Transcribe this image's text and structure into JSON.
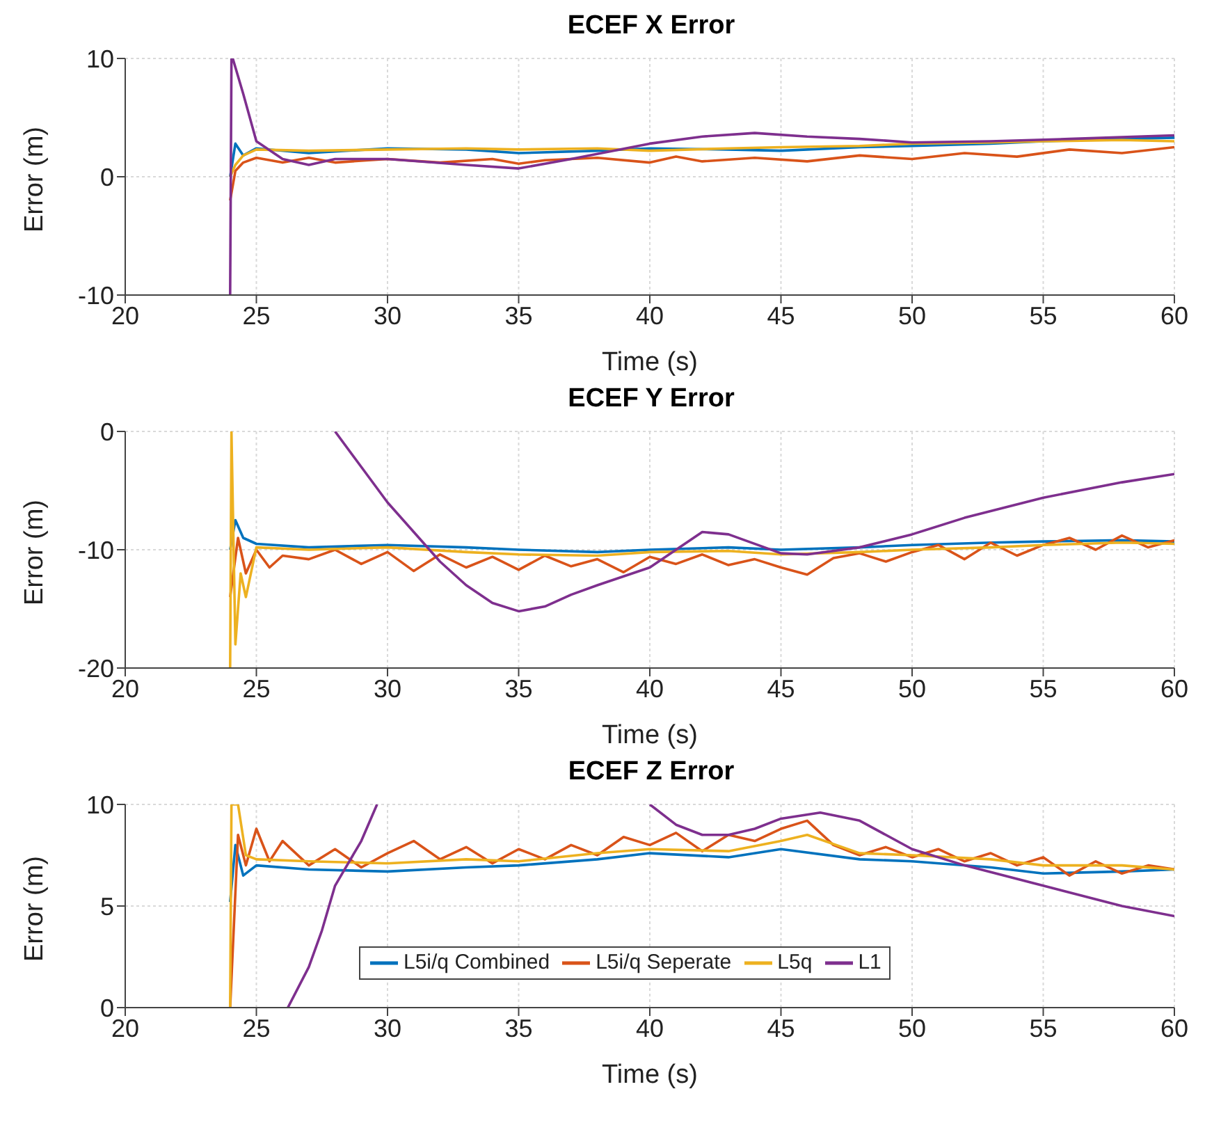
{
  "chart_data": [
    {
      "type": "line",
      "title": "ECEF X Error",
      "xlabel": "Time (s)",
      "ylabel": "Error (m)",
      "xlim": [
        20,
        60
      ],
      "xticks": [
        20,
        25,
        30,
        35,
        40,
        45,
        50,
        55,
        60
      ],
      "ylim": [
        -10,
        10
      ],
      "yticks": [
        -10,
        0,
        10
      ],
      "grid": true,
      "legend": false,
      "line_style": "solid",
      "marker": "none",
      "series": [
        {
          "color": "#0072bd",
          "x": [
            24,
            24.2,
            24.5,
            25,
            27,
            30,
            33,
            35,
            38,
            40,
            43,
            45,
            48,
            50,
            53,
            55,
            58,
            60
          ],
          "values": [
            0,
            2.8,
            1.8,
            2.4,
            2.0,
            2.4,
            2.3,
            2.0,
            2.2,
            2.4,
            2.3,
            2.2,
            2.5,
            2.6,
            2.8,
            3,
            3.2,
            3.3
          ]
        },
        {
          "color": "#d95319",
          "x": [
            24,
            24.2,
            24.5,
            25,
            26,
            27,
            28,
            30,
            32,
            34,
            35,
            36,
            38,
            40,
            41,
            42,
            44,
            46,
            48,
            50,
            52,
            54,
            56,
            58,
            60
          ],
          "values": [
            -2,
            0.5,
            1.2,
            1.6,
            1.2,
            1.6,
            1.2,
            1.5,
            1.2,
            1.5,
            1.1,
            1.4,
            1.6,
            1.2,
            1.7,
            1.3,
            1.6,
            1.3,
            1.8,
            1.5,
            2,
            1.7,
            2.3,
            2,
            2.5
          ]
        },
        {
          "color": "#edb120",
          "x": [
            24,
            24.2,
            24.5,
            25,
            27,
            30,
            33,
            35,
            38,
            40,
            43,
            45,
            48,
            50,
            53,
            55,
            58,
            60
          ],
          "values": [
            0,
            1,
            1.8,
            2.3,
            2.2,
            2.3,
            2.4,
            2.3,
            2.4,
            2.2,
            2.4,
            2.5,
            2.6,
            2.8,
            2.9,
            3,
            3.1,
            3
          ]
        },
        {
          "color": "#7e2f8e",
          "x": [
            24,
            24.05,
            24.1,
            24.5,
            25,
            26,
            27,
            28,
            30,
            33,
            35,
            37,
            40,
            42,
            44,
            46,
            48,
            50,
            53,
            56,
            60
          ],
          "values": [
            -10,
            10,
            10,
            7,
            3,
            1.5,
            1,
            1.5,
            1.5,
            1,
            0.7,
            1.5,
            2.8,
            3.4,
            3.7,
            3.4,
            3.2,
            2.9,
            3,
            3.2,
            3.5
          ]
        }
      ]
    },
    {
      "type": "line",
      "title": "ECEF Y Error",
      "xlabel": "Time (s)",
      "ylabel": "Error (m)",
      "xlim": [
        20,
        60
      ],
      "xticks": [
        20,
        25,
        30,
        35,
        40,
        45,
        50,
        55,
        60
      ],
      "ylim": [
        -20,
        0
      ],
      "yticks": [
        -20,
        -10,
        0
      ],
      "grid": true,
      "legend": false,
      "line_style": "solid",
      "marker": "none",
      "series": [
        {
          "color": "#0072bd",
          "x": [
            24,
            24.2,
            24.5,
            25,
            27,
            30,
            33,
            35,
            38,
            40,
            43,
            45,
            48,
            50,
            53,
            55,
            58,
            60
          ],
          "values": [
            -10,
            -7.5,
            -9,
            -9.5,
            -9.8,
            -9.6,
            -9.8,
            -10,
            -10.2,
            -10,
            -9.8,
            -10,
            -9.8,
            -9.6,
            -9.4,
            -9.3,
            -9.2,
            -9.3
          ]
        },
        {
          "color": "#d95319",
          "x": [
            24,
            24.3,
            24.6,
            25,
            25.5,
            26,
            27,
            28,
            29,
            30,
            31,
            32,
            33,
            34,
            35,
            36,
            37,
            38,
            39,
            40,
            41,
            42,
            43,
            44,
            45,
            46,
            47,
            48,
            49,
            50,
            51,
            52,
            53,
            54,
            55,
            56,
            57,
            58,
            59,
            60
          ],
          "values": [
            -14,
            -9,
            -12,
            -10,
            -11.5,
            -10.5,
            -10.8,
            -10,
            -11.2,
            -10.2,
            -11.8,
            -10.4,
            -11.5,
            -10.6,
            -11.7,
            -10.5,
            -11.4,
            -10.8,
            -11.9,
            -10.6,
            -11.2,
            -10.4,
            -11.3,
            -10.8,
            -11.5,
            -12.1,
            -10.7,
            -10.3,
            -11,
            -10.2,
            -9.6,
            -10.8,
            -9.4,
            -10.5,
            -9.6,
            -9,
            -10,
            -8.8,
            -9.8,
            -9.2
          ]
        },
        {
          "color": "#edb120",
          "x": [
            24,
            24.05,
            24.2,
            24.4,
            24.6,
            25,
            27,
            30,
            33,
            35,
            38,
            40,
            43,
            45,
            48,
            50,
            53,
            55,
            58,
            60
          ],
          "values": [
            -20,
            0,
            -18,
            -12,
            -14,
            -9.8,
            -10,
            -9.8,
            -10.2,
            -10.4,
            -10.5,
            -10.2,
            -10.1,
            -10.4,
            -10.2,
            -10,
            -9.8,
            -9.6,
            -9.4,
            -9.5
          ]
        },
        {
          "color": "#7e2f8e",
          "x": [
            28,
            29,
            30,
            31,
            32,
            33,
            34,
            35,
            36,
            37,
            38,
            40,
            42,
            43,
            45,
            46,
            48,
            50,
            52,
            55,
            58,
            60
          ],
          "values": [
            0,
            -3,
            -6,
            -8.5,
            -11,
            -13,
            -14.5,
            -15.2,
            -14.8,
            -13.8,
            -13,
            -11.5,
            -8.5,
            -8.7,
            -10.3,
            -10.4,
            -9.8,
            -8.7,
            -7.3,
            -5.6,
            -4.3,
            -3.6
          ]
        }
      ]
    },
    {
      "type": "line",
      "title": "ECEF Z Error",
      "xlabel": "Time (s)",
      "ylabel": "Error (m)",
      "xlim": [
        20,
        60
      ],
      "xticks": [
        20,
        25,
        30,
        35,
        40,
        45,
        50,
        55,
        60
      ],
      "ylim": [
        0,
        10
      ],
      "yticks": [
        0,
        5,
        10
      ],
      "grid": true,
      "legend": "bottom",
      "line_style": "solid",
      "marker": "none",
      "series": [
        {
          "name": "L5i/q Combined",
          "color": "#0072bd",
          "x": [
            24,
            24.2,
            24.5,
            25,
            27,
            30,
            33,
            35,
            38,
            40,
            43,
            45,
            48,
            50,
            53,
            55,
            58,
            60
          ],
          "values": [
            5.2,
            8,
            6.5,
            7,
            6.8,
            6.7,
            6.9,
            7,
            7.3,
            7.6,
            7.4,
            7.8,
            7.3,
            7.2,
            6.9,
            6.6,
            6.7,
            6.8
          ]
        },
        {
          "name": "L5i/q Seperate",
          "color": "#d95319",
          "x": [
            24,
            24.3,
            24.6,
            25,
            25.5,
            26,
            27,
            28,
            29,
            30,
            31,
            32,
            33,
            34,
            35,
            36,
            37,
            38,
            39,
            40,
            41,
            42,
            43,
            44,
            45,
            46,
            47,
            48,
            49,
            50,
            51,
            52,
            53,
            54,
            55,
            56,
            57,
            58,
            59,
            60
          ],
          "values": [
            0,
            8.5,
            7,
            8.8,
            7.2,
            8.2,
            7,
            7.8,
            6.9,
            7.6,
            8.2,
            7.3,
            7.9,
            7.1,
            7.8,
            7.3,
            8,
            7.5,
            8.4,
            8,
            8.6,
            7.7,
            8.5,
            8.2,
            8.8,
            9.2,
            8,
            7.5,
            7.9,
            7.4,
            7.8,
            7.2,
            7.6,
            7,
            7.4,
            6.5,
            7.2,
            6.6,
            7,
            6.8
          ]
        },
        {
          "name": "L5q",
          "color": "#edb120",
          "x": [
            24,
            24.05,
            24.3,
            24.6,
            25,
            27,
            30,
            33,
            35,
            38,
            40,
            43,
            45,
            46,
            48,
            50,
            53,
            55,
            58,
            60
          ],
          "values": [
            0,
            10,
            10,
            7.5,
            7.3,
            7.2,
            7.1,
            7.3,
            7.2,
            7.6,
            7.8,
            7.7,
            8.2,
            8.5,
            7.6,
            7.5,
            7.3,
            7,
            7,
            6.8
          ]
        },
        {
          "name": "L1",
          "color": "#7e2f8e",
          "x": [
            26.2,
            27,
            27.5,
            28,
            29,
            29.6,
            29.7,
            39.9,
            40,
            41,
            42,
            43,
            44,
            45,
            46.5,
            48,
            50,
            52,
            55,
            58,
            60
          ],
          "values": [
            0,
            2,
            3.8,
            6,
            8.2,
            10,
            null,
            null,
            10,
            9,
            8.5,
            8.5,
            8.8,
            9.3,
            9.6,
            9.2,
            7.8,
            7,
            6,
            5,
            4.5
          ]
        }
      ]
    }
  ]
}
